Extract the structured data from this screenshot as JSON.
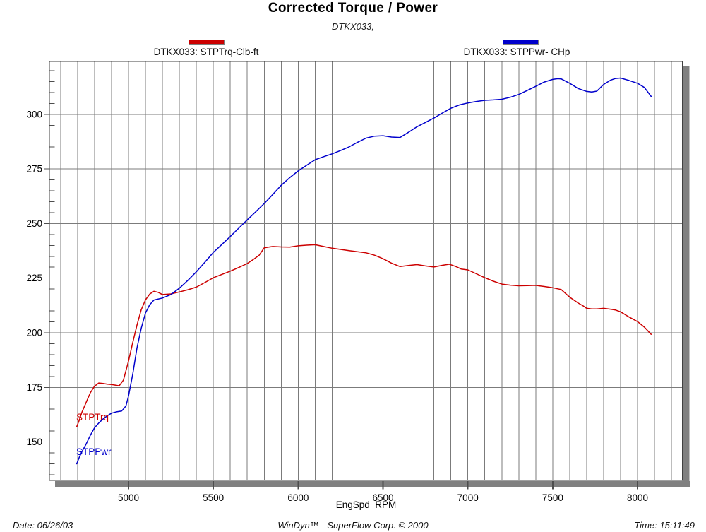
{
  "title": "Corrected Torque / Power",
  "subtitle": "DTKX033,",
  "legend": {
    "torque": {
      "label": "DTKX033: STPTrq-Clb-ft",
      "color": "#cc0000"
    },
    "power": {
      "label": "DTKX033: STPPwr- CHp",
      "color": "#0000cc"
    }
  },
  "x_axis": {
    "label": "EngSpd  RPM"
  },
  "footer": {
    "date": "Date: 06/26/03",
    "credit": "WinDyn™ - SuperFlow Corp. © 2000",
    "time": "Time: 15:11:49"
  },
  "chart_data": {
    "type": "line",
    "title": "Corrected Torque / Power",
    "subtitle": "DTKX033,",
    "xlabel": "EngSpd RPM",
    "ylabel": "",
    "x_range_visible": [
      4534,
      8264
    ],
    "y_range_visible": [
      132.4,
      324.2
    ],
    "x_grid_step": 100,
    "y_minor_step": 5,
    "x_ticks": [
      5000,
      5500,
      6000,
      6500,
      7000,
      7500,
      8000
    ],
    "y_ticks": [
      150,
      175,
      200,
      225,
      250,
      275,
      300
    ],
    "grid": "on",
    "legend_position": "top",
    "colors": {
      "grid": "#7b7b7b",
      "axis_bar": "#808080",
      "border": "#404040",
      "tick": "#4d4d4d"
    },
    "series": [
      {
        "name": "DTKX033: STPTrq-Clb-ft",
        "short": "STPTrq",
        "units": "Clb-ft",
        "color": "#cc0000",
        "points": [
          [
            4695,
            157
          ],
          [
            4710,
            160
          ],
          [
            4725,
            163.5
          ],
          [
            4750,
            168
          ],
          [
            4775,
            172.5
          ],
          [
            4800,
            175.5
          ],
          [
            4825,
            177
          ],
          [
            4850,
            176.8
          ],
          [
            4875,
            176.5
          ],
          [
            4900,
            176.3
          ],
          [
            4925,
            176
          ],
          [
            4945,
            175.7
          ],
          [
            4970,
            178.3
          ],
          [
            5000,
            187
          ],
          [
            5025,
            195.5
          ],
          [
            5050,
            203.5
          ],
          [
            5075,
            210.5
          ],
          [
            5100,
            215
          ],
          [
            5125,
            217.7
          ],
          [
            5150,
            219
          ],
          [
            5175,
            218.5
          ],
          [
            5200,
            217.5
          ],
          [
            5250,
            217.8
          ],
          [
            5300,
            218.7
          ],
          [
            5350,
            219.7
          ],
          [
            5400,
            220.9
          ],
          [
            5450,
            223
          ],
          [
            5500,
            225.2
          ],
          [
            5550,
            226.7
          ],
          [
            5600,
            228.2
          ],
          [
            5650,
            229.9
          ],
          [
            5700,
            231.7
          ],
          [
            5740,
            233.8
          ],
          [
            5770,
            235.5
          ],
          [
            5800,
            238.9
          ],
          [
            5850,
            239.5
          ],
          [
            5900,
            239.3
          ],
          [
            5950,
            239.2
          ],
          [
            6000,
            239.8
          ],
          [
            6050,
            240.1
          ],
          [
            6100,
            240.3
          ],
          [
            6150,
            239.5
          ],
          [
            6200,
            238.7
          ],
          [
            6300,
            237.6
          ],
          [
            6400,
            236.6
          ],
          [
            6450,
            235.5
          ],
          [
            6500,
            233.9
          ],
          [
            6550,
            231.9
          ],
          [
            6600,
            230.3
          ],
          [
            6650,
            230.8
          ],
          [
            6700,
            231.2
          ],
          [
            6750,
            230.6
          ],
          [
            6800,
            230.1
          ],
          [
            6850,
            230.9
          ],
          [
            6890,
            231.4
          ],
          [
            6930,
            230.3
          ],
          [
            6960,
            229.2
          ],
          [
            7000,
            228.8
          ],
          [
            7050,
            227
          ],
          [
            7100,
            225.2
          ],
          [
            7150,
            223.6
          ],
          [
            7200,
            222.3
          ],
          [
            7250,
            221.8
          ],
          [
            7300,
            221.5
          ],
          [
            7350,
            221.6
          ],
          [
            7400,
            221.7
          ],
          [
            7450,
            221.2
          ],
          [
            7500,
            220.6
          ],
          [
            7550,
            219.8
          ],
          [
            7600,
            216.3
          ],
          [
            7650,
            213.6
          ],
          [
            7680,
            212.3
          ],
          [
            7700,
            211.2
          ],
          [
            7730,
            210.9
          ],
          [
            7760,
            210.9
          ],
          [
            7800,
            211.2
          ],
          [
            7840,
            210.8
          ],
          [
            7870,
            210.4
          ],
          [
            7900,
            209.6
          ],
          [
            7950,
            207.2
          ],
          [
            8000,
            205.1
          ],
          [
            8040,
            202.6
          ],
          [
            8080,
            199.3
          ]
        ]
      },
      {
        "name": "DTKX033: STPPwr- CHp",
        "short": "STPPwr",
        "units": "CHp",
        "color": "#0000cc",
        "points": [
          [
            4695,
            140
          ],
          [
            4710,
            143
          ],
          [
            4725,
            145.5
          ],
          [
            4750,
            149
          ],
          [
            4775,
            153
          ],
          [
            4800,
            156.5
          ],
          [
            4825,
            158.7
          ],
          [
            4850,
            160.5
          ],
          [
            4875,
            162
          ],
          [
            4900,
            163.2
          ],
          [
            4930,
            163.8
          ],
          [
            4960,
            164.2
          ],
          [
            4985,
            166.5
          ],
          [
            5000,
            171
          ],
          [
            5025,
            181
          ],
          [
            5050,
            193
          ],
          [
            5075,
            202
          ],
          [
            5100,
            209
          ],
          [
            5125,
            212.8
          ],
          [
            5150,
            215
          ],
          [
            5200,
            215.9
          ],
          [
            5250,
            217.5
          ],
          [
            5300,
            220.4
          ],
          [
            5350,
            224
          ],
          [
            5400,
            227.9
          ],
          [
            5450,
            232.3
          ],
          [
            5500,
            236.8
          ],
          [
            5550,
            240.4
          ],
          [
            5600,
            244.1
          ],
          [
            5650,
            247.9
          ],
          [
            5700,
            251.7
          ],
          [
            5750,
            255.4
          ],
          [
            5800,
            259.2
          ],
          [
            5850,
            263.3
          ],
          [
            5900,
            267.5
          ],
          [
            5950,
            271
          ],
          [
            6000,
            274.1
          ],
          [
            6050,
            276.7
          ],
          [
            6100,
            279.2
          ],
          [
            6150,
            280.6
          ],
          [
            6200,
            281.9
          ],
          [
            6250,
            283.4
          ],
          [
            6300,
            285.1
          ],
          [
            6350,
            287.2
          ],
          [
            6400,
            289.1
          ],
          [
            6450,
            290
          ],
          [
            6500,
            290.2
          ],
          [
            6550,
            289.6
          ],
          [
            6600,
            289.4
          ],
          [
            6650,
            291.8
          ],
          [
            6700,
            294.3
          ],
          [
            6750,
            296.3
          ],
          [
            6800,
            298.3
          ],
          [
            6850,
            300.6
          ],
          [
            6900,
            302.8
          ],
          [
            6950,
            304.3
          ],
          [
            7000,
            305.2
          ],
          [
            7050,
            305.9
          ],
          [
            7100,
            306.4
          ],
          [
            7150,
            306.6
          ],
          [
            7200,
            306.9
          ],
          [
            7250,
            307.8
          ],
          [
            7300,
            309.1
          ],
          [
            7350,
            310.9
          ],
          [
            7400,
            312.8
          ],
          [
            7450,
            314.8
          ],
          [
            7500,
            316
          ],
          [
            7530,
            316.3
          ],
          [
            7550,
            316.2
          ],
          [
            7600,
            314.2
          ],
          [
            7650,
            311.8
          ],
          [
            7700,
            310.5
          ],
          [
            7730,
            310.2
          ],
          [
            7760,
            310.6
          ],
          [
            7800,
            313.7
          ],
          [
            7840,
            315.6
          ],
          [
            7870,
            316.4
          ],
          [
            7900,
            316.6
          ],
          [
            7950,
            315.5
          ],
          [
            8000,
            314.2
          ],
          [
            8040,
            312.3
          ],
          [
            8080,
            308.2
          ]
        ]
      }
    ]
  }
}
